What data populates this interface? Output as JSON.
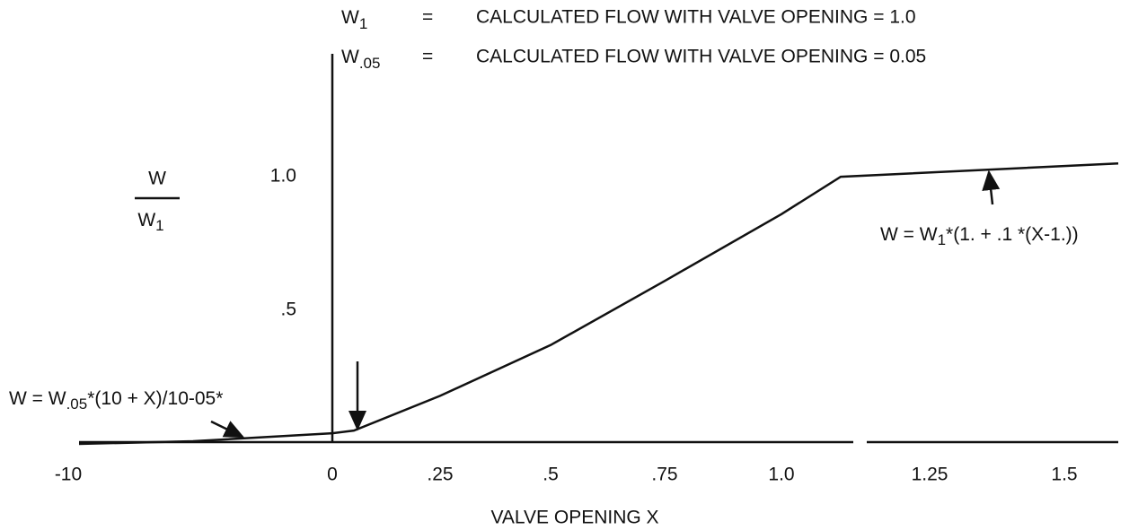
{
  "chart_data": {
    "type": "line",
    "definitions": [
      {
        "symbol": "W",
        "sub": "1",
        "eq": "=",
        "text": "CALCULATED FLOW WITH VALVE OPENING = 1.0"
      },
      {
        "symbol": "W",
        "sub": ".05",
        "eq": "=",
        "text": "CALCULATED FLOW WITH VALVE OPENING = 0.05"
      }
    ],
    "y_label": {
      "top": "W",
      "bottom": "W",
      "bottom_sub": "1"
    },
    "x_label": "VALVE OPENING  X",
    "annotations": [
      {
        "main": "W = W",
        "sub": ".05",
        "rest": "*(10 + X)/10-05*"
      },
      {
        "main": "W = W",
        "sub": "1",
        "rest": "*(1. + .1 *(X-1.))"
      }
    ],
    "x": [
      -10,
      -5.5,
      0,
      0.05,
      0.25,
      0.5,
      0.75,
      1.0,
      1.1,
      1.6
    ],
    "values": [
      0,
      0.01,
      0.04,
      0.05,
      0.18,
      0.37,
      0.61,
      0.86,
      1.0,
      1.05
    ],
    "color": "#111111",
    "xlim": [
      -10,
      1.6
    ],
    "ylim": [
      0,
      1.45
    ],
    "xticks": [
      -10,
      0,
      {
        "value": 0.25,
        "label": ".25"
      },
      {
        "value": 0.5,
        "label": ".5"
      },
      {
        "value": 0.75,
        "label": ".75"
      },
      {
        "value": 1.0,
        "label": "1.0"
      },
      1.25,
      1.5
    ],
    "yticks": [
      {
        "value": 0.5,
        "label": ".5"
      },
      {
        "value": 1.0,
        "label": "1.0"
      }
    ]
  }
}
